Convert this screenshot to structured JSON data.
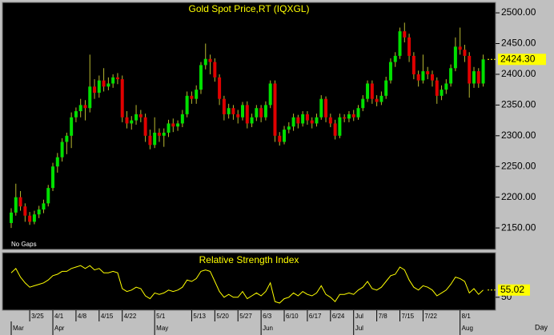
{
  "chart_data": [
    {
      "type": "candlestick",
      "title": "Gold Spot Price,RT (IQXGL)",
      "note": "No Gaps",
      "xlabel": "Day",
      "categories": [
        null,
        null,
        null,
        null,
        "3/25",
        null,
        null,
        null,
        null,
        "4/1",
        null,
        null,
        null,
        null,
        "4/8",
        null,
        null,
        null,
        null,
        "4/15",
        null,
        null,
        null,
        null,
        "4/22",
        null,
        null,
        null,
        null,
        null,
        null,
        "5/1",
        null,
        null,
        null,
        null,
        null,
        null,
        null,
        "5/13",
        null,
        null,
        null,
        null,
        "5/20",
        null,
        null,
        null,
        null,
        "5/27",
        null,
        null,
        null,
        null,
        "6/3",
        null,
        null,
        null,
        null,
        "6/10",
        null,
        null,
        null,
        null,
        "6/17",
        null,
        null,
        null,
        null,
        "6/24",
        null,
        null,
        null,
        null,
        "Jul",
        null,
        null,
        null,
        null,
        "7/8",
        null,
        null,
        null,
        null,
        "7/15",
        null,
        null,
        null,
        null,
        "7/22",
        null,
        null,
        null,
        null,
        null,
        null,
        null,
        "8/1",
        null,
        null,
        null,
        null,
        null
      ],
      "month_labels": [
        {
          "value": 0,
          "label": "Mar"
        },
        {
          "value": 9,
          "label": "Apr"
        },
        {
          "value": 31,
          "label": "May"
        },
        {
          "value": 54,
          "label": "Jun"
        },
        {
          "value": 74,
          "label": "Jul"
        },
        {
          "value": 97,
          "label": "Aug"
        }
      ],
      "open": [
        2158,
        2175,
        2200,
        2185,
        2170,
        2160,
        2172,
        2180,
        2190,
        2215,
        2250,
        2265,
        2290,
        2300,
        2330,
        2340,
        2350,
        2345,
        2380,
        2370,
        2390,
        2380,
        2385,
        2395,
        2392,
        2330,
        2320,
        2325,
        2335,
        2330,
        2300,
        2285,
        2305,
        2300,
        2305,
        2320,
        2315,
        2320,
        2335,
        2365,
        2360,
        2375,
        2415,
        2425,
        2420,
        2395,
        2360,
        2335,
        2345,
        2335,
        2330,
        2350,
        2320,
        2330,
        2345,
        2330,
        2350,
        2385,
        2300,
        2290,
        2310,
        2315,
        2330,
        2320,
        2335,
        2325,
        2320,
        2330,
        2360,
        2330,
        2320,
        2300,
        2330,
        2328,
        2335,
        2330,
        2345,
        2360,
        2385,
        2360,
        2355,
        2365,
        2390,
        2420,
        2430,
        2470,
        2460,
        2430,
        2400,
        2390,
        2405,
        2400,
        2390,
        2365,
        2375,
        2385,
        2410,
        2445,
        2440,
        2430,
        2385,
        2405,
        2385
      ],
      "high": [
        2182,
        2222,
        2210,
        2190,
        2176,
        2178,
        2186,
        2196,
        2220,
        2256,
        2272,
        2296,
        2305,
        2338,
        2346,
        2360,
        2358,
        2432,
        2392,
        2398,
        2410,
        2395,
        2400,
        2402,
        2398,
        2340,
        2332,
        2350,
        2342,
        2336,
        2310,
        2330,
        2312,
        2312,
        2326,
        2328,
        2325,
        2342,
        2372,
        2372,
        2382,
        2420,
        2450,
        2432,
        2426,
        2400,
        2365,
        2352,
        2350,
        2342,
        2355,
        2356,
        2336,
        2350,
        2350,
        2356,
        2390,
        2390,
        2306,
        2316,
        2322,
        2336,
        2334,
        2340,
        2340,
        2330,
        2336,
        2366,
        2364,
        2336,
        2326,
        2336,
        2335,
        2340,
        2342,
        2350,
        2366,
        2390,
        2390,
        2366,
        2372,
        2396,
        2426,
        2436,
        2476,
        2484,
        2466,
        2436,
        2406,
        2432,
        2412,
        2406,
        2395,
        2382,
        2392,
        2416,
        2460,
        2476,
        2448,
        2436,
        2412,
        2410,
        2432
      ],
      "low": [
        2150,
        2170,
        2178,
        2160,
        2155,
        2156,
        2166,
        2174,
        2185,
        2210,
        2240,
        2258,
        2270,
        2280,
        2322,
        2330,
        2325,
        2338,
        2360,
        2362,
        2372,
        2374,
        2378,
        2384,
        2322,
        2312,
        2310,
        2318,
        2322,
        2290,
        2278,
        2280,
        2290,
        2282,
        2298,
        2306,
        2308,
        2314,
        2330,
        2352,
        2352,
        2368,
        2408,
        2400,
        2388,
        2350,
        2325,
        2328,
        2326,
        2320,
        2325,
        2312,
        2314,
        2324,
        2322,
        2325,
        2345,
        2290,
        2284,
        2286,
        2304,
        2308,
        2312,
        2315,
        2318,
        2312,
        2315,
        2326,
        2322,
        2314,
        2294,
        2296,
        2322,
        2322,
        2324,
        2326,
        2340,
        2355,
        2352,
        2348,
        2350,
        2360,
        2385,
        2412,
        2425,
        2452,
        2420,
        2392,
        2380,
        2385,
        2392,
        2380,
        2352,
        2358,
        2368,
        2380,
        2405,
        2432,
        2420,
        2362,
        2378,
        2378,
        2380
      ],
      "close": [
        2175,
        2200,
        2185,
        2170,
        2160,
        2172,
        2180,
        2190,
        2215,
        2250,
        2265,
        2290,
        2300,
        2330,
        2340,
        2350,
        2345,
        2380,
        2370,
        2390,
        2380,
        2385,
        2395,
        2392,
        2330,
        2320,
        2325,
        2335,
        2330,
        2300,
        2285,
        2305,
        2300,
        2305,
        2320,
        2315,
        2320,
        2335,
        2365,
        2360,
        2375,
        2415,
        2425,
        2420,
        2395,
        2360,
        2335,
        2345,
        2335,
        2330,
        2350,
        2320,
        2330,
        2345,
        2330,
        2350,
        2385,
        2300,
        2290,
        2310,
        2315,
        2330,
        2320,
        2335,
        2325,
        2320,
        2330,
        2360,
        2330,
        2320,
        2300,
        2330,
        2328,
        2335,
        2330,
        2345,
        2360,
        2385,
        2360,
        2355,
        2365,
        2390,
        2420,
        2430,
        2470,
        2460,
        2430,
        2400,
        2390,
        2405,
        2400,
        2390,
        2365,
        2375,
        2385,
        2410,
        2445,
        2440,
        2430,
        2385,
        2405,
        2385,
        2424.3
      ],
      "last_close_label": "2424.30",
      "up_color": "#00e000",
      "down_color": "#e00000",
      "wick_color": "#b8b830",
      "title_color": "#ffff00",
      "ylim": [
        2115,
        2517
      ],
      "yticks": [
        {
          "value": 2150,
          "label": "2150.00"
        },
        {
          "value": 2200,
          "label": "2200.00"
        },
        {
          "value": 2250,
          "label": "2250.00"
        },
        {
          "value": 2300,
          "label": "2300.00"
        },
        {
          "value": 2350,
          "label": "2350.00"
        },
        {
          "value": 2400,
          "label": "2400.00"
        },
        {
          "value": 2450,
          "label": "2450.00"
        },
        {
          "value": 2500,
          "label": "2500.00"
        }
      ]
    },
    {
      "type": "line",
      "title": "Relative Strength Index",
      "color": "#ffff00",
      "series": [
        {
          "name": "RSI",
          "color": "#ffff00",
          "values": [
            67,
            70,
            64,
            60,
            57,
            58,
            59,
            60,
            62,
            65,
            66,
            68,
            68,
            70,
            71,
            72,
            70,
            72,
            69,
            70,
            67,
            67,
            68,
            67,
            56,
            54,
            55,
            57,
            56,
            51,
            49,
            53,
            52,
            53,
            55,
            54,
            55,
            57,
            62,
            61,
            63,
            68,
            69,
            68,
            61,
            54,
            50,
            52,
            50,
            50,
            54,
            49,
            51,
            53,
            51,
            54,
            60,
            47,
            46,
            49,
            50,
            53,
            51,
            54,
            52,
            51,
            53,
            58,
            52,
            50,
            47,
            52,
            52,
            53,
            52,
            55,
            57,
            61,
            56,
            55,
            57,
            61,
            65,
            66,
            71,
            69,
            62,
            57,
            55,
            58,
            57,
            55,
            51,
            53,
            55,
            59,
            64,
            63,
            61,
            53,
            56,
            52,
            55.02
          ]
        }
      ],
      "ylim": [
        41,
        81
      ],
      "yticks": [
        50
      ]
    }
  ]
}
